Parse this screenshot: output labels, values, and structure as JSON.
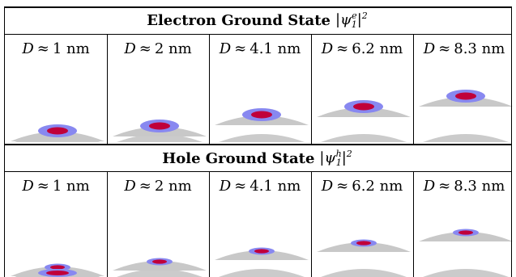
{
  "electron": {
    "title_text": "Electron Ground State",
    "title_math": "|ψ",
    "title_sup": "e",
    "title_sub": "1",
    "title_close": "|",
    "title_pow": "2"
  },
  "hole": {
    "title_text": "Hole Ground State",
    "title_math": "|ψ",
    "title_sup": "h",
    "title_sub": "1",
    "title_close": "|",
    "title_pow": "2"
  },
  "columns": [
    {
      "var": "D",
      "approx": "≈",
      "value": "1 nm"
    },
    {
      "var": "D",
      "approx": "≈",
      "value": "2 nm"
    },
    {
      "var": "D",
      "approx": "≈",
      "value": "4.1 nm"
    },
    {
      "var": "D",
      "approx": "≈",
      "value": "6.2 nm"
    },
    {
      "var": "D",
      "approx": "≈",
      "value": "8.3 nm"
    }
  ],
  "colors": {
    "dot_gray": "#c8c8c8",
    "lens_gray": "#cbcbcb",
    "density_outer": "#8888f0",
    "density_inner": "#c0003a"
  }
}
